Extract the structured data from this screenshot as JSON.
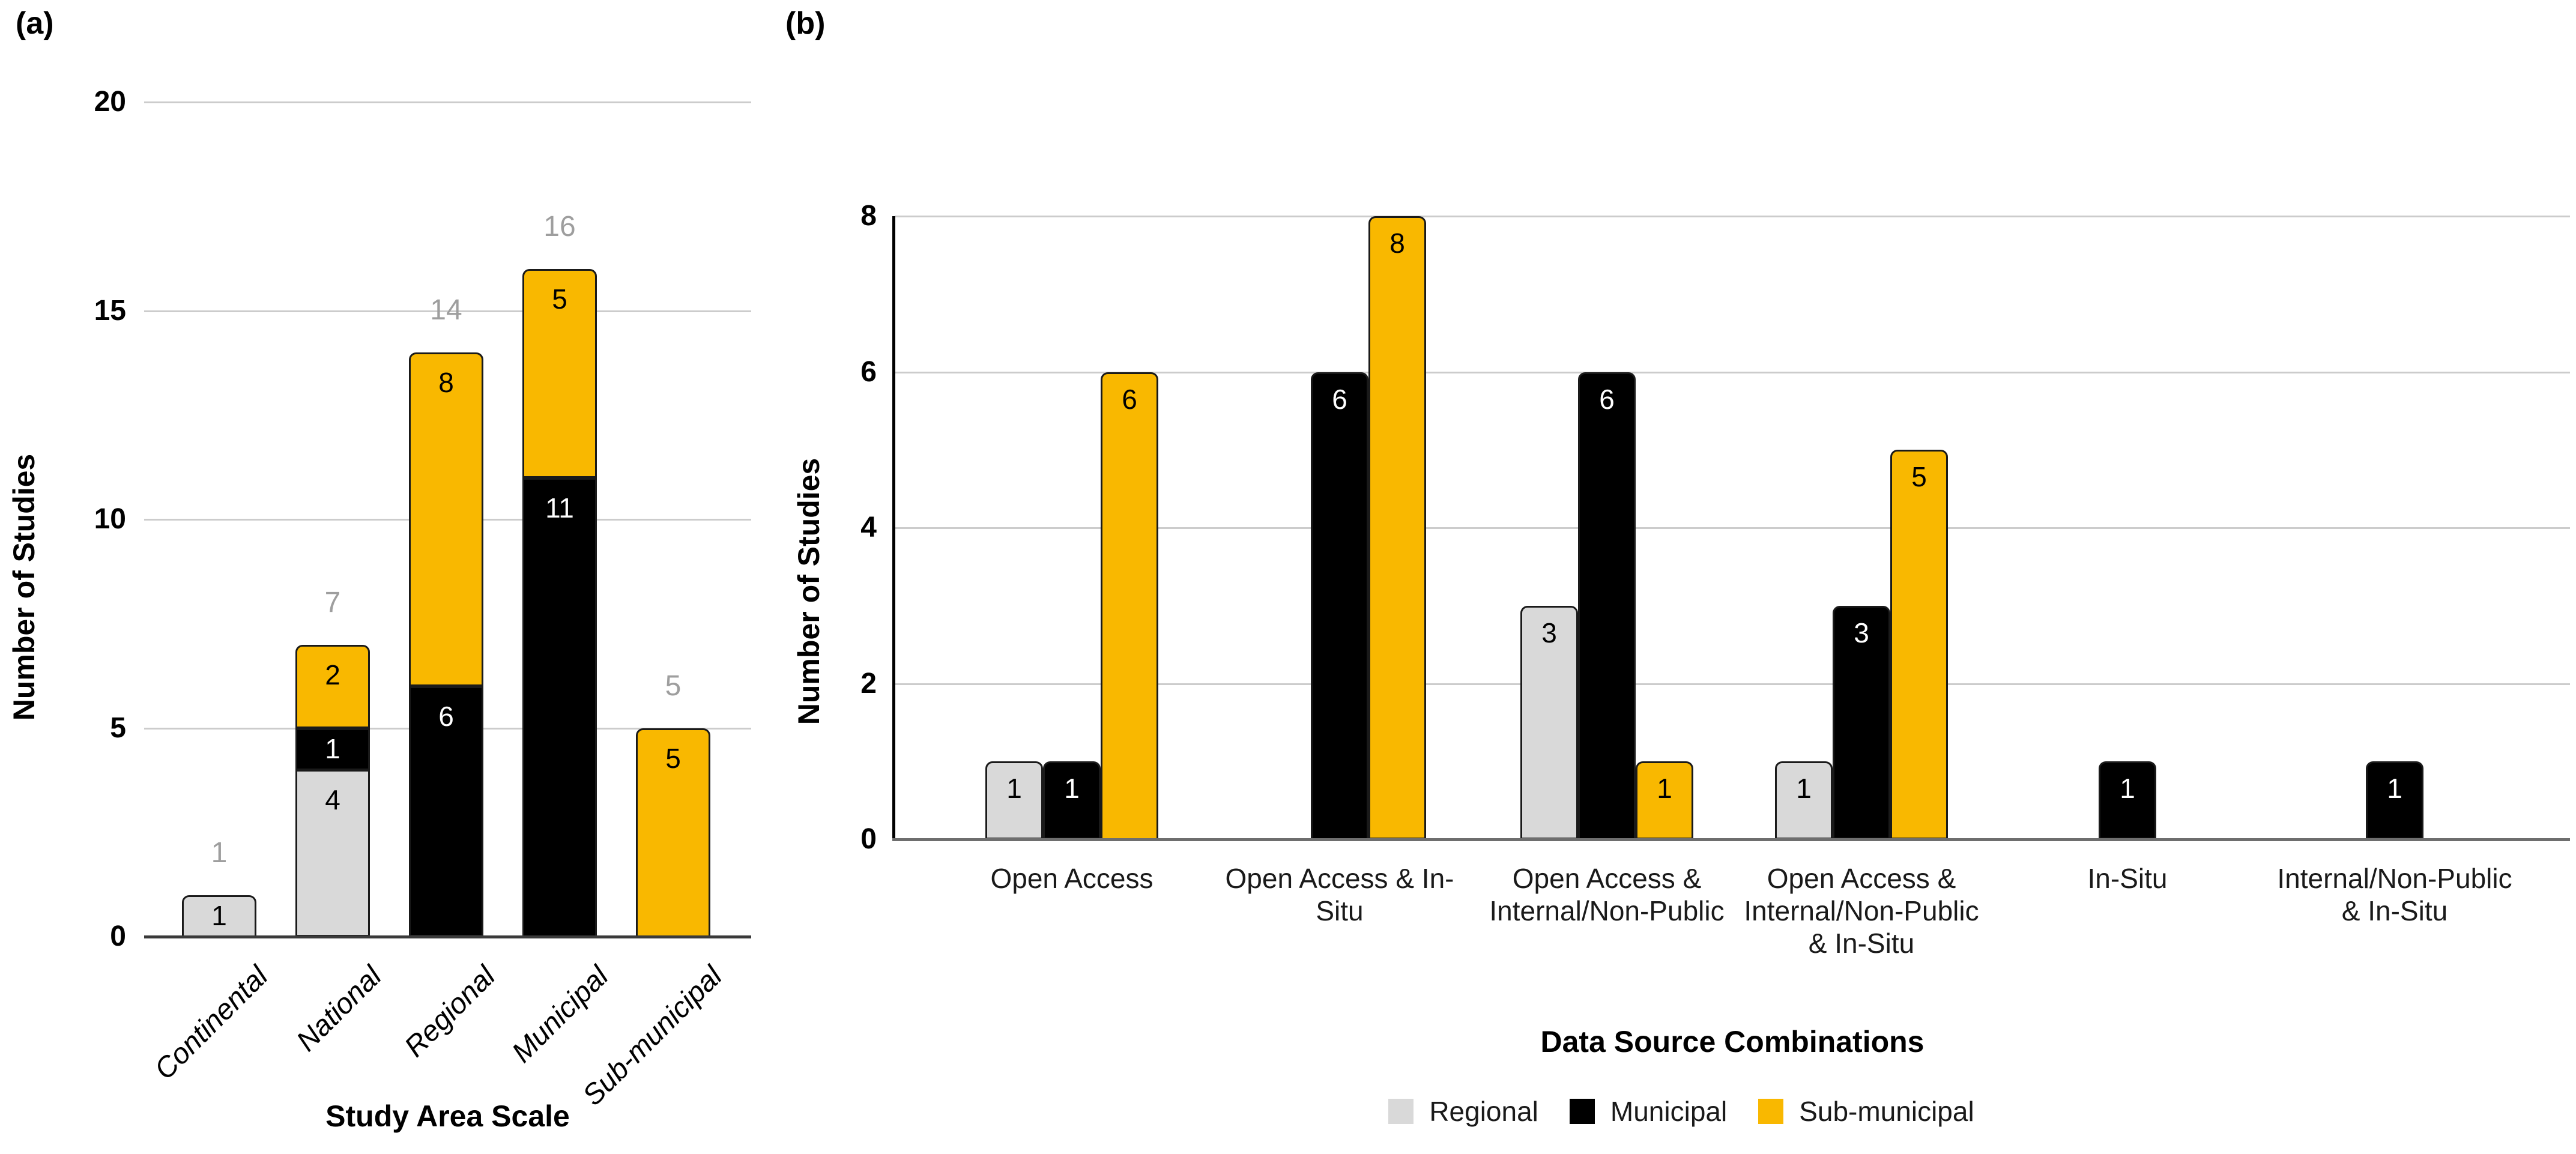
{
  "panels": {
    "a": {
      "tag": "(a)"
    },
    "b": {
      "tag": "(b)"
    }
  },
  "palette": {
    "series": {
      "Regional": "#D9D9D9",
      "Municipal": "#000000",
      "Sub-municipal": "#F9B800"
    },
    "bar_border": "#1A1A1A",
    "gridline": "#CCCCCC",
    "axis_line_a": "#3A3A3A",
    "axis_line_b": "#6E6E6E",
    "yaxis_line_b": "#000000",
    "total_label": "#9E9E9E"
  },
  "chart_data": [
    {
      "id": "a",
      "type": "bar",
      "subtype": "stacked",
      "title": "",
      "xlabel": "Study Area Scale",
      "ylabel": "Number of Studies",
      "ylim": [
        0,
        20
      ],
      "yticks": [
        0,
        5,
        10,
        15,
        20
      ],
      "grid": true,
      "legend_position": "none",
      "categories": [
        "Continental",
        "National",
        "Regional",
        "Municipal",
        "Sub-municipal"
      ],
      "series": [
        {
          "name": "Regional",
          "values": [
            1,
            4,
            0,
            0,
            0
          ]
        },
        {
          "name": "Municipal",
          "values": [
            0,
            1,
            6,
            11,
            0
          ]
        },
        {
          "name": "Sub-municipal",
          "values": [
            0,
            2,
            8,
            5,
            5
          ]
        }
      ],
      "totals": [
        1,
        7,
        14,
        16,
        5
      ]
    },
    {
      "id": "b",
      "type": "bar",
      "subtype": "grouped",
      "title": "",
      "xlabel": "Data Source Combinations",
      "ylabel": "Number of Studies",
      "ylim": [
        0,
        8
      ],
      "yticks": [
        0,
        2,
        4,
        6,
        8
      ],
      "grid": true,
      "legend_position": "bottom",
      "categories": [
        "Open Access",
        "Open Access & In-Situ",
        "Open Access & Internal/Non-Public",
        "Open Access & Internal/Non-Public & In-Situ",
        "In-Situ",
        "Internal/Non-Public & In-Situ"
      ],
      "category_lines": [
        [
          "Open Access"
        ],
        [
          "Open Access & In-",
          "Situ"
        ],
        [
          "Open Access &",
          "Internal/Non-Public"
        ],
        [
          "Open Access &",
          "Internal/Non-Public",
          "& In-Situ"
        ],
        [
          "In-Situ"
        ],
        [
          "Internal/Non-Public",
          "& In-Situ"
        ]
      ],
      "series": [
        {
          "name": "Regional",
          "values": [
            1,
            0,
            3,
            1,
            0,
            0
          ]
        },
        {
          "name": "Municipal",
          "values": [
            1,
            6,
            6,
            3,
            1,
            1
          ]
        },
        {
          "name": "Sub-municipal",
          "values": [
            6,
            8,
            1,
            5,
            0,
            0
          ]
        }
      ],
      "legend": {
        "items": [
          "Regional",
          "Municipal",
          "Sub-municipal"
        ]
      }
    }
  ]
}
